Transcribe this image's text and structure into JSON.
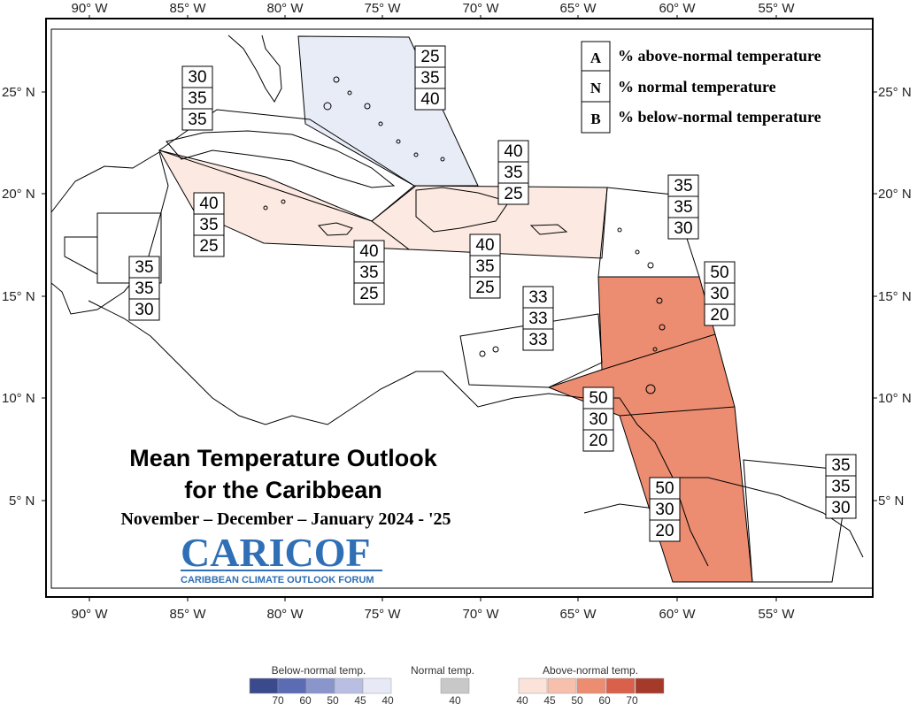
{
  "axes": {
    "lon_labels": [
      "90° W",
      "85° W",
      "80° W",
      "75° W",
      "70° W",
      "65° W",
      "60° W",
      "55° W"
    ],
    "lat_labels": [
      "25° N",
      "20° N",
      "15° N",
      "10° N",
      "5° N"
    ]
  },
  "legend_keys": [
    {
      "key": "A",
      "text": "% above-normal temperature"
    },
    {
      "key": "N",
      "text": "% normal temperature"
    },
    {
      "key": "B",
      "text": "% below-normal temperature"
    }
  ],
  "title": {
    "line1": "Mean Temperature Outlook",
    "line2": "for the Caribbean",
    "line3": "November – December – January 2024 - '25"
  },
  "logo": {
    "text": "CARICOF",
    "subtitle": "CARIBBEAN CLIMATE OUTLOOK FORUM"
  },
  "forecast_boxes": [
    {
      "region": "bahamas",
      "values": [
        "25",
        "35",
        "40"
      ]
    },
    {
      "region": "cuba-west",
      "values": [
        "30",
        "35",
        "35"
      ]
    },
    {
      "region": "hispaniola-north",
      "values": [
        "40",
        "35",
        "25"
      ]
    },
    {
      "region": "cayman-jamaica-west",
      "values": [
        "40",
        "35",
        "25"
      ]
    },
    {
      "region": "jamaica",
      "values": [
        "40",
        "35",
        "25"
      ]
    },
    {
      "region": "hispaniola-pr",
      "values": [
        "40",
        "35",
        "25"
      ]
    },
    {
      "region": "belize",
      "values": [
        "35",
        "35",
        "30"
      ]
    },
    {
      "region": "leewards-north",
      "values": [
        "35",
        "35",
        "30"
      ]
    },
    {
      "region": "windwards",
      "values": [
        "50",
        "30",
        "20"
      ]
    },
    {
      "region": "abc-islands",
      "values": [
        "33",
        "33",
        "33"
      ]
    },
    {
      "region": "trinidad",
      "values": [
        "50",
        "30",
        "20"
      ]
    },
    {
      "region": "guyana",
      "values": [
        "50",
        "30",
        "20"
      ]
    },
    {
      "region": "suriname-fg",
      "values": [
        "35",
        "35",
        "30"
      ]
    }
  ],
  "color_scale": {
    "below_title": "Below-normal temp.",
    "normal_title": "Normal temp.",
    "above_title": "Above-normal temp.",
    "below_colors": [
      "#3a4a8c",
      "#5b6cb5",
      "#8a95cc",
      "#b9bfe2",
      "#e7eaf6"
    ],
    "below_ticks": [
      "70",
      "60",
      "50",
      "45",
      "40"
    ],
    "normal_color": "#c8c8c8",
    "normal_tick": "40",
    "above_colors": [
      "#fbe3da",
      "#f6c0ad",
      "#ec8d72",
      "#d9604a",
      "#a63a2a"
    ],
    "above_ticks": [
      "40",
      "45",
      "50",
      "60",
      "70"
    ]
  }
}
